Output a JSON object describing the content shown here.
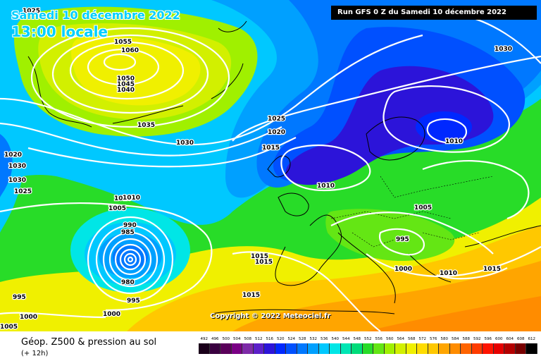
{
  "title": {
    "date_line": "Samedi 10 décembre 2022",
    "time_line": "13:00 locale"
  },
  "run_info": "Run GFS 0 Z du Samedi 10 décembre 2022",
  "copyright": "Copyright © 2022 Meteociel.fr",
  "footer": {
    "product": "Géop. Z500 & pression au sol",
    "lead": "(+ 12h)"
  },
  "isobar_labels": [
    {
      "id": "l1025a",
      "text": "1025"
    },
    {
      "id": "l1055",
      "text": "1055"
    },
    {
      "id": "l1060",
      "text": "1060"
    },
    {
      "id": "l1050",
      "text": "1050"
    },
    {
      "id": "l1045",
      "text": "1045"
    },
    {
      "id": "l1040",
      "text": "1040"
    },
    {
      "id": "l1035",
      "text": "1035"
    },
    {
      "id": "l1030a",
      "text": "1030"
    },
    {
      "id": "l1030b",
      "text": "1030"
    },
    {
      "id": "l1025b",
      "text": "1025"
    },
    {
      "id": "l1020a",
      "text": "1020"
    },
    {
      "id": "l1015a",
      "text": "1015"
    },
    {
      "id": "l1010a",
      "text": "1010"
    },
    {
      "id": "l1010b",
      "text": "1010"
    },
    {
      "id": "l1020b",
      "text": "1020"
    },
    {
      "id": "l1030c",
      "text": "1030"
    },
    {
      "id": "l1025c",
      "text": "1025"
    },
    {
      "id": "l1010c",
      "text": "1010"
    },
    {
      "id": "l1005a",
      "text": "1005"
    },
    {
      "id": "l990",
      "text": "990"
    },
    {
      "id": "l985",
      "text": "985"
    },
    {
      "id": "l980",
      "text": "980"
    },
    {
      "id": "l995a",
      "text": "995"
    },
    {
      "id": "l1000a",
      "text": "1000"
    },
    {
      "id": "l995b",
      "text": "995"
    },
    {
      "id": "l1000b",
      "text": "1000"
    },
    {
      "id": "l1005b",
      "text": "1005"
    },
    {
      "id": "l1015b",
      "text": "1015"
    },
    {
      "id": "l1015c",
      "text": "1015"
    },
    {
      "id": "l1015d",
      "text": "1015"
    },
    {
      "id": "l1005c",
      "text": "1005"
    },
    {
      "id": "l995c",
      "text": "995"
    },
    {
      "id": "l1000c",
      "text": "1000"
    },
    {
      "id": "l1010d",
      "text": "1010"
    },
    {
      "id": "l1015e",
      "text": "1015"
    },
    {
      "id": "l1030d",
      "text": "1030"
    },
    {
      "id": "l1010e",
      "text": "1010"
    }
  ],
  "legend_scale": {
    "values": [
      "492",
      "496",
      "500",
      "504",
      "508",
      "512",
      "516",
      "520",
      "524",
      "528",
      "532",
      "536",
      "540",
      "544",
      "548",
      "552",
      "556",
      "560",
      "564",
      "568",
      "572",
      "576",
      "580",
      "584",
      "588",
      "592",
      "596",
      "600",
      "604",
      "608",
      "612"
    ],
    "colors": [
      "#1a001a",
      "#3a0040",
      "#5a005a",
      "#7a0085",
      "#7e2aa8",
      "#5c1fc9",
      "#2c14d9",
      "#0028ff",
      "#0050ff",
      "#0078ff",
      "#00a0ff",
      "#00c8ff",
      "#00e6e6",
      "#00e6b4",
      "#00dc7a",
      "#28dc28",
      "#64e614",
      "#a0f000",
      "#d2f000",
      "#f0f000",
      "#ffdc00",
      "#ffc800",
      "#ffa500",
      "#ff8c00",
      "#ff6400",
      "#ff3c00",
      "#ff1400",
      "#e60000",
      "#b40000",
      "#780000",
      "#000000"
    ]
  }
}
